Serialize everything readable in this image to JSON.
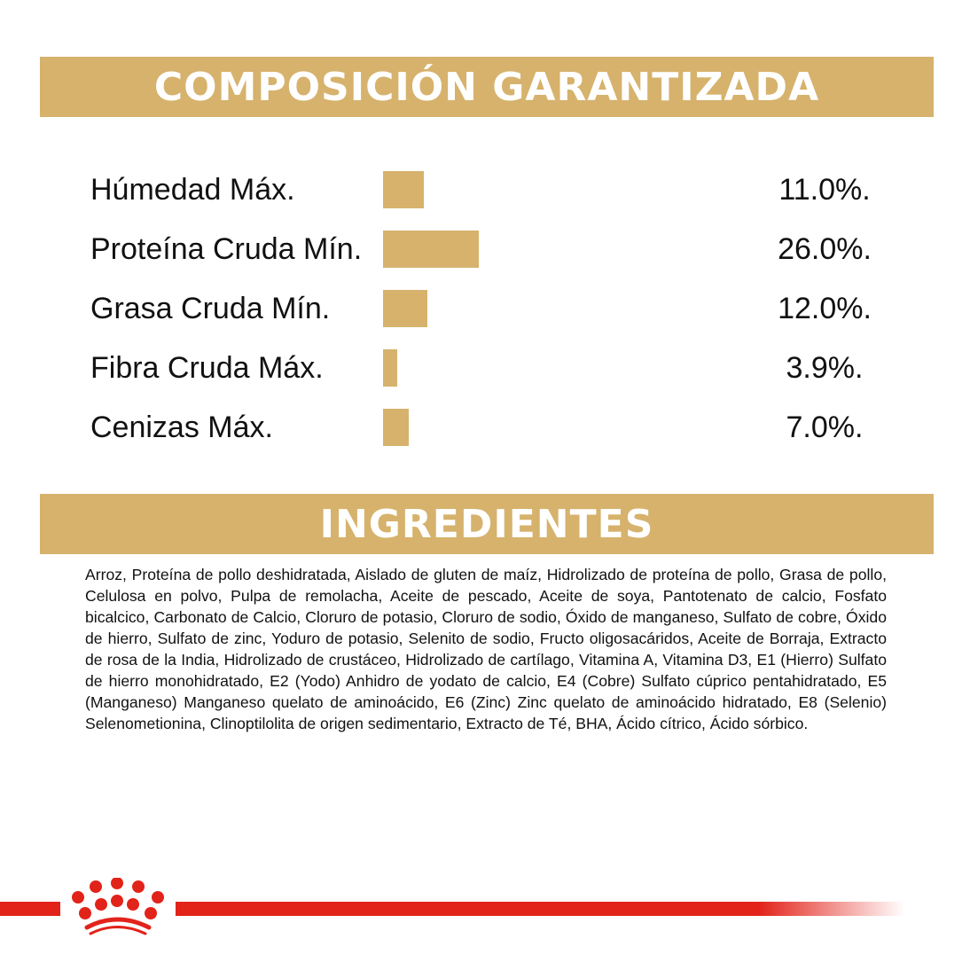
{
  "colors": {
    "gold": "#D6B26C",
    "red": "#E2231A"
  },
  "composition": {
    "title": "COMPOSICIÓN GARANTIZADA"
  },
  "chart_data": {
    "type": "bar",
    "orientation": "horizontal",
    "categories": [
      "Húmedad Máx.",
      "Proteína Cruda Mín.",
      "Grasa Cruda Mín.",
      "Fibra Cruda Máx.",
      "Cenizas Máx."
    ],
    "values": [
      11.0,
      26.0,
      12.0,
      3.9,
      7.0
    ],
    "value_labels": [
      "11.0%.",
      "26.0%.",
      "12.0%.",
      "3.9%.",
      "7.0%."
    ],
    "grid": false
  },
  "ingredients": {
    "title": "INGREDIENTES",
    "text": "Arroz, Proteína de pollo deshidratada, Aislado de gluten de maíz, Hidrolizado de proteína de pollo, Grasa de pollo, Celulosa en polvo, Pulpa de remolacha, Aceite de pescado, Aceite de soya, Pantotenato de calcio, Fosfato bicalcico, Carbonato de Calcio, Cloruro de potasio, Cloruro de sodio, Óxido de manganeso, Sulfato de cobre, Óxido de hierro, Sulfato de zinc, Yoduro de potasio, Selenito de sodio, Fructo oligosacáridos, Aceite de Borraja, Extracto de rosa de la India, Hidrolizado de crustáceo, Hidrolizado de cartílago, Vitamina A, Vitamina D3, E1 (Hierro) Sulfato de hierro monohidratado, E2 (Yodo) Anhidro de yodato de calcio, E4 (Cobre) Sulfato cúprico pentahidratado, E5 (Manganeso) Manganeso quelato de aminoácido, E6 (Zinc) Zinc quelato de aminoácido hidratado, E8 (Selenio) Selenometionina, Clinoptilolita de origen sedimentario, Extracto de Té, BHA, Ácido cítrico, Ácido sórbico."
  },
  "footer": {
    "logo_icon": "crown-icon"
  }
}
